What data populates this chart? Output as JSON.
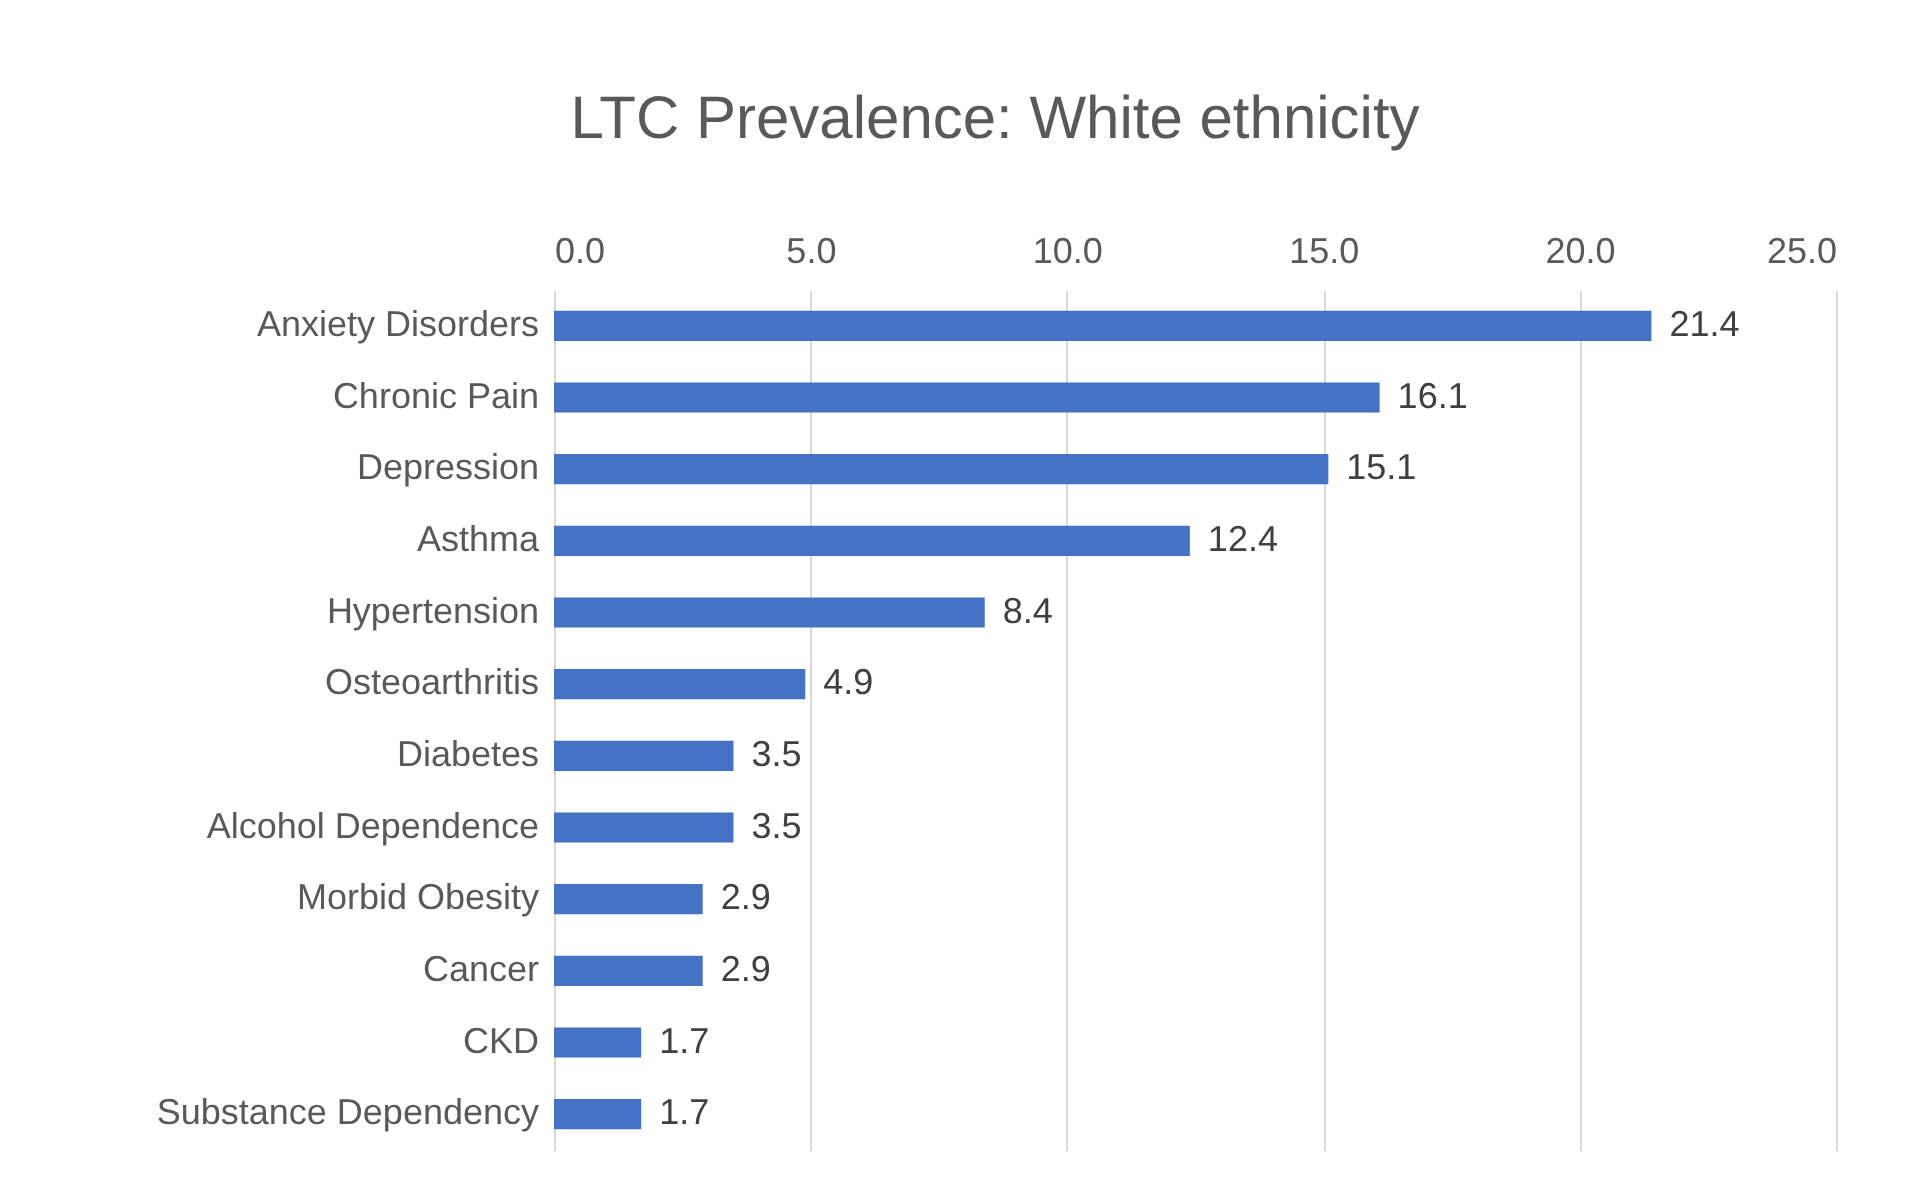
{
  "chart_data": {
    "type": "bar",
    "orientation": "horizontal",
    "title": "LTC Prevalence: White ethnicity",
    "categories": [
      "Anxiety Disorders",
      "Chronic Pain",
      "Depression",
      "Asthma",
      "Hypertension",
      "Osteoarthritis",
      "Diabetes",
      "Alcohol Dependence",
      "Morbid Obesity",
      "Cancer",
      "CKD",
      "Substance Dependency"
    ],
    "values": [
      21.4,
      16.1,
      15.1,
      12.4,
      8.4,
      4.9,
      3.5,
      3.5,
      2.9,
      2.9,
      1.7,
      1.7
    ],
    "color": "#4472c4",
    "xlim": [
      0,
      25
    ],
    "xticks": [
      {
        "value": 0,
        "label": "0.0"
      },
      {
        "value": 5,
        "label": "5.0"
      },
      {
        "value": 10,
        "label": "10.0"
      },
      {
        "value": 15,
        "label": "15.0"
      },
      {
        "value": 20,
        "label": "20.0"
      },
      {
        "value": 25,
        "label": "25.0"
      }
    ],
    "grid": "x",
    "data_labels": true
  }
}
